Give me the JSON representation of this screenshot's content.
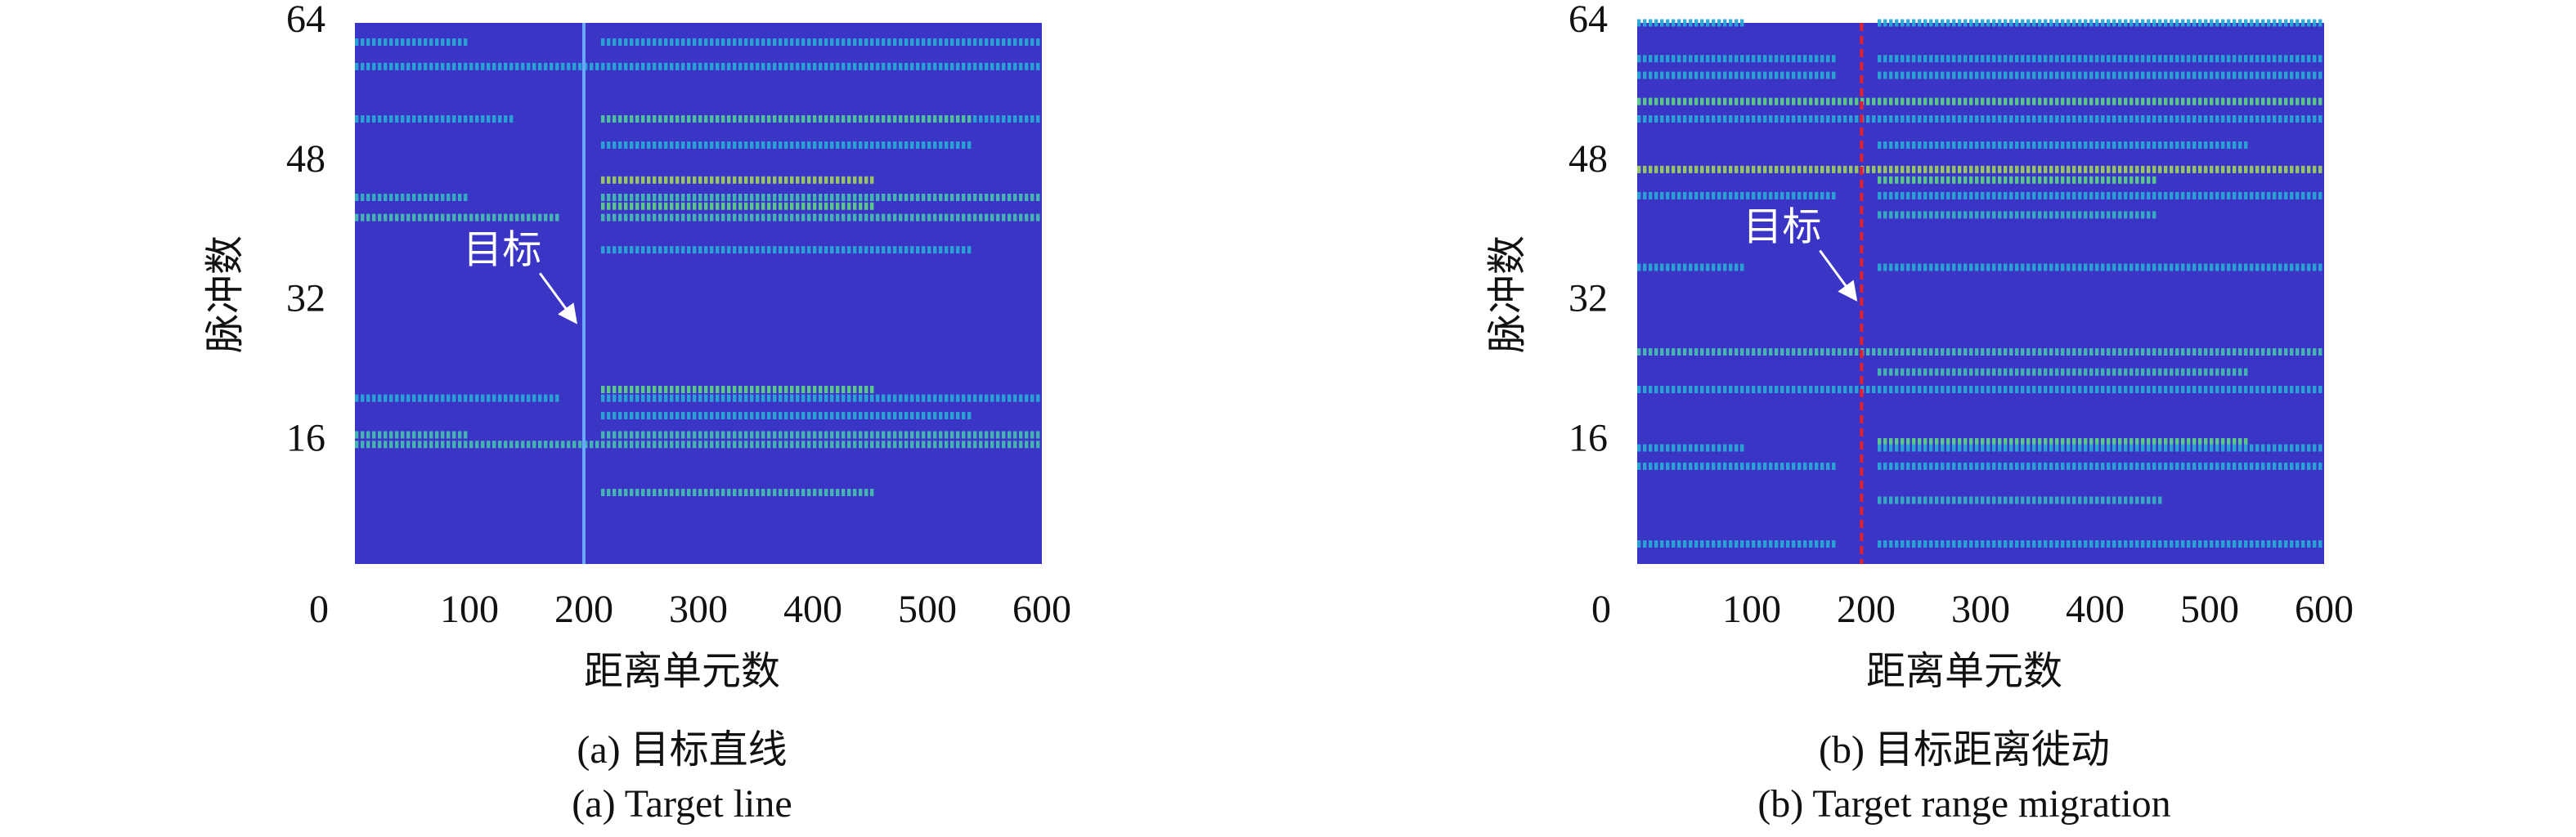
{
  "chart_data": [
    {
      "type": "heatmap",
      "xlabel": "距离单元数",
      "ylabel": "脉冲数",
      "caption": "(a) 目标直线",
      "caption_en": "(a) Target line",
      "xlim": [
        0,
        600
      ],
      "ylim": [
        2,
        64
      ],
      "xticks": [
        0,
        100,
        200,
        300,
        400,
        500,
        600
      ],
      "yticks": [
        16,
        32,
        48,
        64
      ],
      "background": "#3b35c6",
      "target_x": 200,
      "target_color": "#6aa8ff",
      "target_style": "solid",
      "annotation": {
        "text": "目标",
        "x": 193,
        "y": 29.7
      },
      "stripes": [
        [
          61.8,
          0,
          100,
          0.5
        ],
        [
          61.8,
          215,
          600,
          0.5
        ],
        [
          59,
          0,
          600,
          0.5
        ],
        [
          53,
          0,
          140,
          0.5
        ],
        [
          53,
          215,
          540,
          0.65
        ],
        [
          53,
          540,
          600,
          0.5
        ],
        [
          50,
          215,
          540,
          0.5
        ],
        [
          46,
          215,
          455,
          0.8
        ],
        [
          44,
          0,
          100,
          0.55
        ],
        [
          44,
          215,
          600,
          0.6
        ],
        [
          43,
          215,
          455,
          0.7
        ],
        [
          41.7,
          0,
          180,
          0.6
        ],
        [
          41.7,
          215,
          600,
          0.6
        ],
        [
          38,
          215,
          540,
          0.5
        ],
        [
          22,
          215,
          455,
          0.7
        ],
        [
          21,
          0,
          180,
          0.5
        ],
        [
          21,
          215,
          600,
          0.5
        ],
        [
          19,
          215,
          540,
          0.5
        ],
        [
          16.8,
          0,
          100,
          0.6
        ],
        [
          16.8,
          215,
          600,
          0.6
        ],
        [
          15.7,
          0,
          600,
          0.6
        ],
        [
          10.2,
          215,
          455,
          0.6
        ]
      ]
    },
    {
      "type": "heatmap",
      "xlabel": "距离单元数",
      "ylabel": "脉冲数",
      "caption": "(b) 目标距离徙动",
      "caption_en": "(b) Target range migration",
      "xlim": [
        0,
        600
      ],
      "ylim": [
        2,
        64
      ],
      "xticks": [
        0,
        100,
        200,
        300,
        400,
        500,
        600
      ],
      "yticks": [
        16,
        32,
        48,
        64
      ],
      "background": "#3b35c6",
      "target_x": 196,
      "target_color": "#e8202a",
      "target_style": "dashed",
      "annotation": {
        "text": "目标",
        "x": 191,
        "y": 32.3
      },
      "stripes": [
        [
          64,
          0,
          95,
          0.5
        ],
        [
          64,
          210,
          600,
          0.5
        ],
        [
          59.9,
          0,
          175,
          0.5
        ],
        [
          59.9,
          210,
          600,
          0.5
        ],
        [
          58,
          0,
          175,
          0.5
        ],
        [
          58,
          210,
          600,
          0.5
        ],
        [
          55,
          0,
          600,
          0.7
        ],
        [
          53,
          0,
          600,
          0.5
        ],
        [
          50,
          210,
          535,
          0.5
        ],
        [
          47.2,
          0,
          600,
          0.8
        ],
        [
          46,
          210,
          455,
          0.7
        ],
        [
          44.2,
          0,
          175,
          0.5
        ],
        [
          44.2,
          210,
          600,
          0.5
        ],
        [
          42,
          210,
          455,
          0.55
        ],
        [
          36,
          0,
          95,
          0.5
        ],
        [
          36,
          210,
          600,
          0.5
        ],
        [
          26.3,
          0,
          600,
          0.6
        ],
        [
          24,
          210,
          535,
          0.6
        ],
        [
          22,
          0,
          600,
          0.5
        ],
        [
          16,
          210,
          535,
          0.7
        ],
        [
          15.3,
          0,
          95,
          0.5
        ],
        [
          15.3,
          210,
          600,
          0.5
        ],
        [
          13.2,
          0,
          175,
          0.5
        ],
        [
          13.2,
          210,
          600,
          0.5
        ],
        [
          9.3,
          210,
          460,
          0.55
        ],
        [
          4.3,
          0,
          175,
          0.5
        ],
        [
          4.3,
          210,
          600,
          0.5
        ]
      ]
    }
  ]
}
